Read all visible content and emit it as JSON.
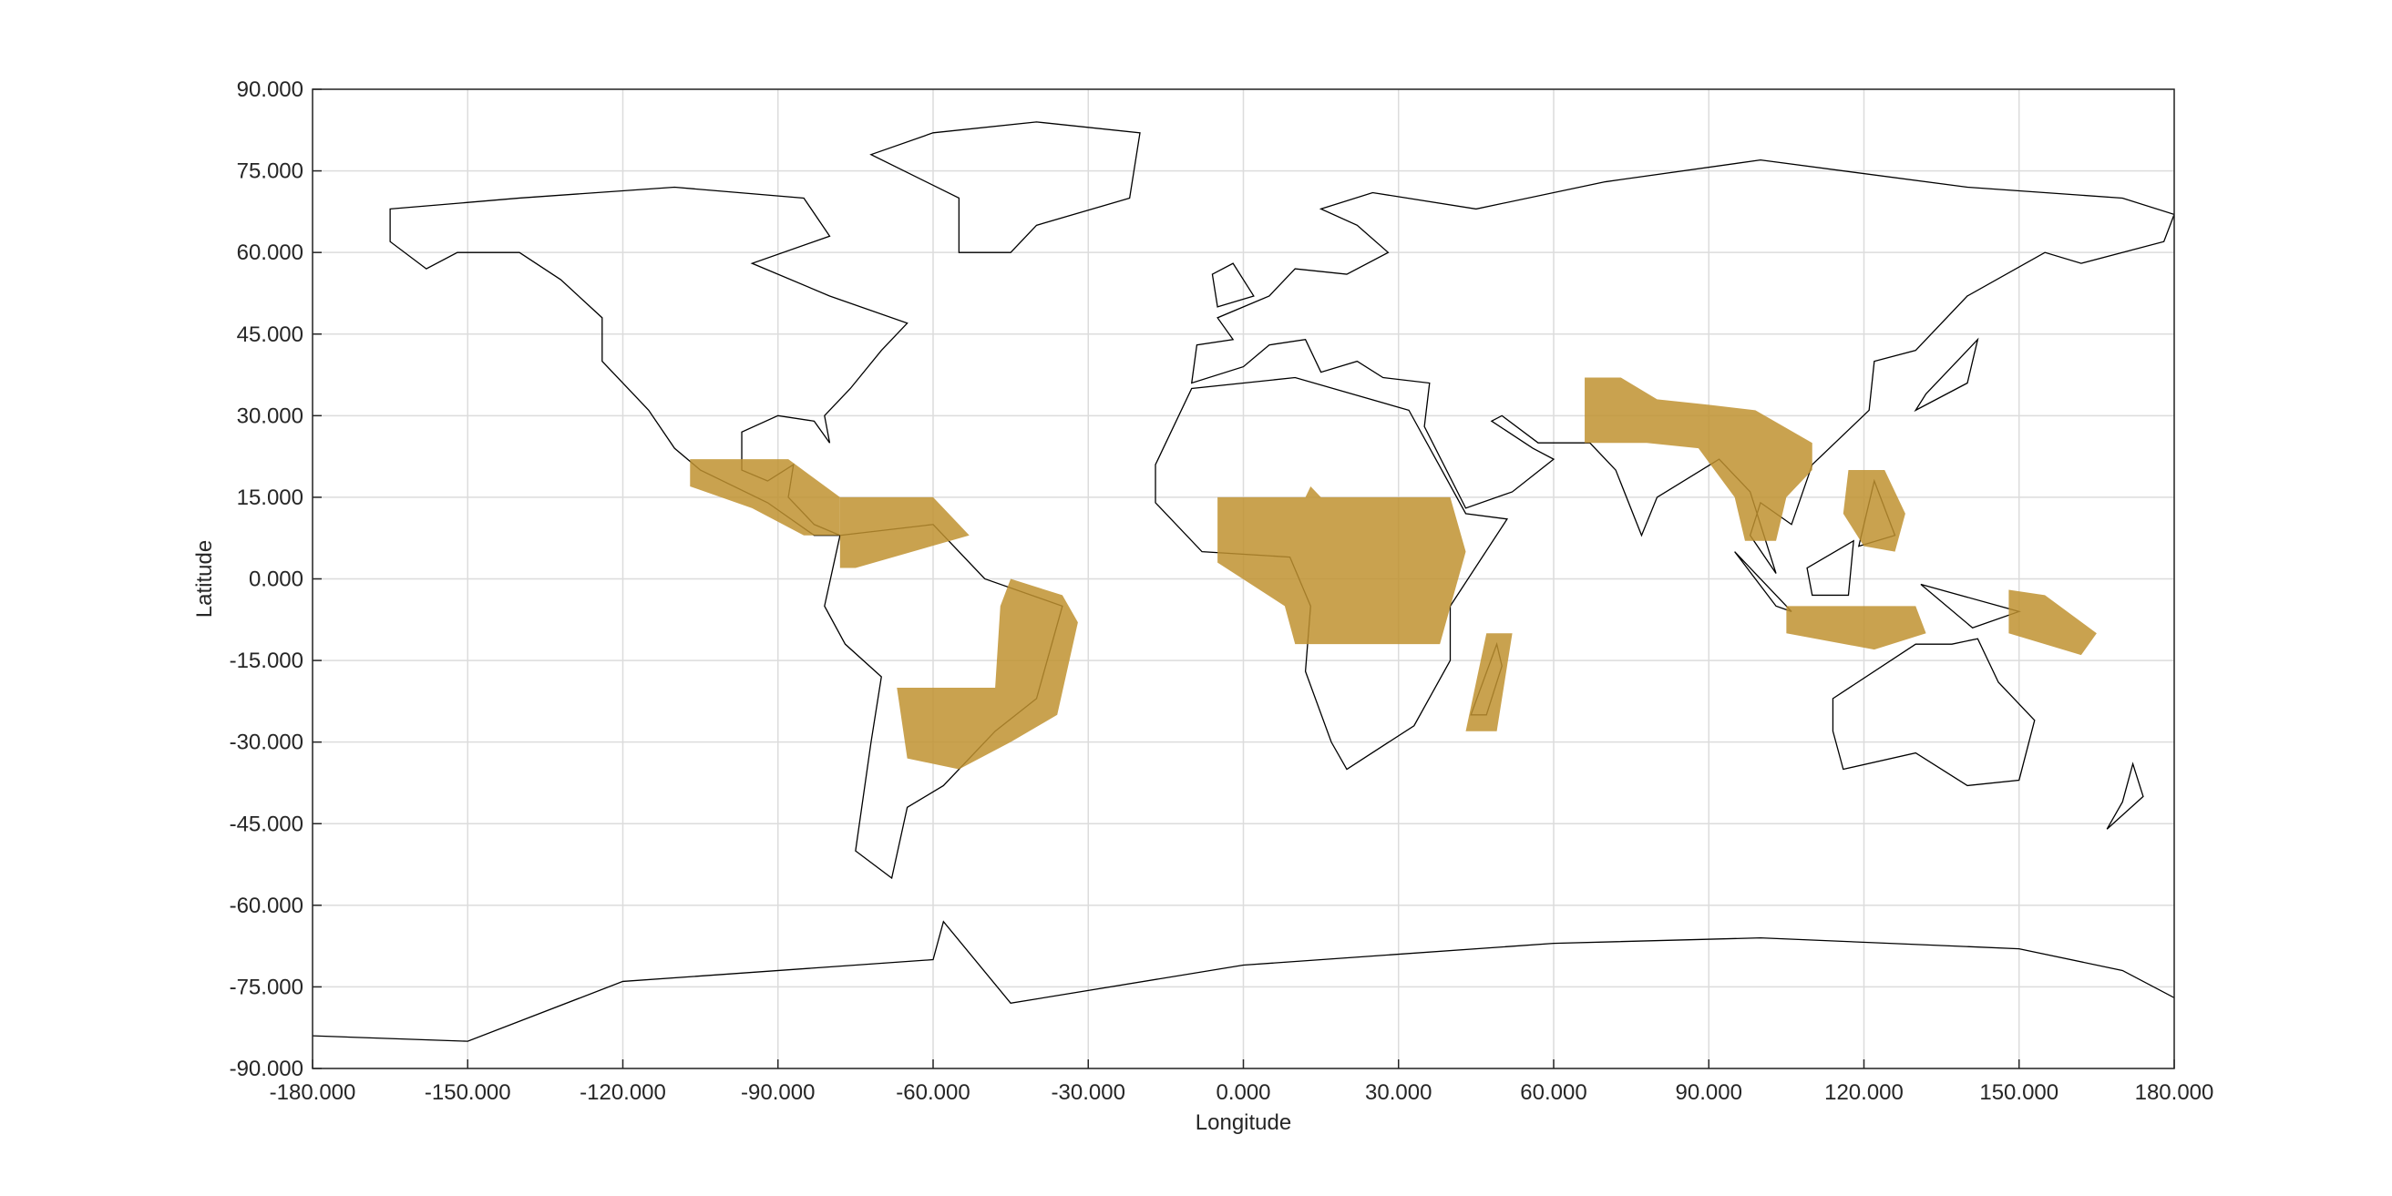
{
  "chart_data": {
    "type": "map",
    "x_label": "Longitude",
    "y_label": "Latitude",
    "xlim": [
      -180,
      180
    ],
    "ylim": [
      -90,
      90
    ],
    "xticks": [
      {
        "value": -180,
        "label": "-180.000"
      },
      {
        "value": -150,
        "label": "-150.000"
      },
      {
        "value": -120,
        "label": "-120.000"
      },
      {
        "value": -90,
        "label": "-90.000"
      },
      {
        "value": -60,
        "label": "-60.000"
      },
      {
        "value": -30,
        "label": "-30.000"
      },
      {
        "value": 0,
        "label": "0.000"
      },
      {
        "value": 30,
        "label": "30.000"
      },
      {
        "value": 60,
        "label": "60.000"
      },
      {
        "value": 90,
        "label": "90.000"
      },
      {
        "value": 120,
        "label": "120.000"
      },
      {
        "value": 150,
        "label": "150.000"
      },
      {
        "value": 180,
        "label": "180.000"
      }
    ],
    "yticks": [
      {
        "value": -90,
        "label": "-90.000"
      },
      {
        "value": -75,
        "label": "-75.000"
      },
      {
        "value": -60,
        "label": "-60.000"
      },
      {
        "value": -45,
        "label": "-45.000"
      },
      {
        "value": -30,
        "label": "-30.000"
      },
      {
        "value": -15,
        "label": "-15.000"
      },
      {
        "value": 0,
        "label": "0.000"
      },
      {
        "value": 15,
        "label": "15.000"
      },
      {
        "value": 30,
        "label": "30.000"
      },
      {
        "value": 45,
        "label": "45.000"
      },
      {
        "value": 60,
        "label": "60.000"
      },
      {
        "value": 75,
        "label": "75.000"
      },
      {
        "value": 90,
        "label": "90.000"
      }
    ],
    "grid": true,
    "color": "#bf9230",
    "regions": [
      {
        "lon": [
          -107,
          -88,
          -78,
          -78,
          -85,
          -95,
          -107
        ],
        "lat": [
          22,
          22,
          15,
          8,
          8,
          13,
          17
        ]
      },
      {
        "lon": [
          -78,
          -60,
          -55,
          -53,
          -75,
          -78
        ],
        "lat": [
          15,
          15,
          10,
          8,
          2,
          2
        ]
      },
      {
        "lon": [
          -45,
          -35,
          -32,
          -36,
          -45,
          -55,
          -65,
          -67,
          -48,
          -47
        ],
        "lat": [
          0,
          -3,
          -8,
          -25,
          -30,
          -35,
          -33,
          -20,
          -20,
          -5
        ]
      },
      {
        "lon": [
          -5,
          12,
          13,
          15,
          40,
          43,
          38,
          10,
          8,
          -5
        ],
        "lat": [
          15,
          15,
          17,
          15,
          15,
          5,
          -12,
          -12,
          -5,
          3
        ]
      },
      {
        "lon": [
          47,
          52,
          49,
          43
        ],
        "lat": [
          -10,
          -10,
          -28,
          -28
        ]
      },
      {
        "lon": [
          66,
          73,
          80,
          90,
          99,
          110,
          110,
          105,
          103,
          97,
          95,
          88,
          78,
          66
        ],
        "lat": [
          37,
          37,
          33,
          32,
          31,
          25,
          20,
          15,
          7,
          7,
          15,
          24,
          25,
          25
        ]
      },
      {
        "lon": [
          117,
          124,
          128,
          126,
          120,
          116
        ],
        "lat": [
          20,
          20,
          12,
          5,
          6,
          12
        ]
      },
      {
        "lon": [
          105,
          130,
          132,
          122,
          105
        ],
        "lat": [
          -5,
          -5,
          -10,
          -13,
          -10
        ]
      },
      {
        "lon": [
          148,
          155,
          165,
          162,
          148
        ],
        "lat": [
          -2,
          -3,
          -10,
          -14,
          -10
        ]
      }
    ]
  }
}
